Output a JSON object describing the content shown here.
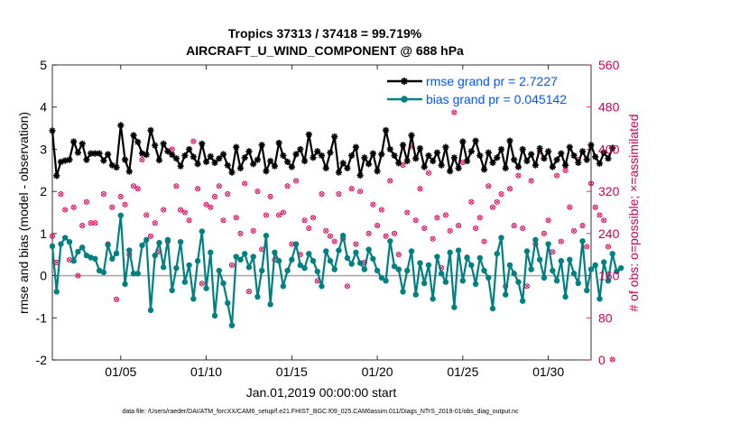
{
  "chart_data": {
    "type": "line",
    "title": "Tropics 37313 / 37418 = 99.719%",
    "subtitle": "AIRCRAFT_U_WIND_COMPONENT @ 688 hPa",
    "xlabel": "Jan.01,2019 00:00:00 start",
    "ylabel": "rmse and bias (model - observation)",
    "y2label": "# of obs: o=possible; ×=assimilated",
    "footnote": "data file: /Users/raeder/DAI/ATM_forcXX/CAM6_setup/f.e21.FHIST_BGC.f09_025.CAM6assim.011/Diags_NTrS_2019-01/obs_diag_output.nc",
    "x_range_days": [
      1,
      32.5
    ],
    "ylim": [
      -2,
      5
    ],
    "y2lim": [
      0,
      560
    ],
    "xticks": [
      {
        "day": 5,
        "label": "01/05"
      },
      {
        "day": 10,
        "label": "01/10"
      },
      {
        "day": 15,
        "label": "01/15"
      },
      {
        "day": 20,
        "label": "01/20"
      },
      {
        "day": 25,
        "label": "01/25"
      },
      {
        "day": 30,
        "label": "01/30"
      }
    ],
    "yticks": [
      "-2",
      "-1",
      "0",
      "1",
      "2",
      "3",
      "4",
      "5"
    ],
    "y2ticks": [
      "0",
      "80",
      "160",
      "240",
      "320",
      "400",
      "480",
      "560"
    ],
    "legend": [
      {
        "name": "rmse grand pr = 2.7227",
        "color": "#000000"
      },
      {
        "name": "bias grand pr = 0.045142",
        "color": "#008080"
      }
    ],
    "colors": {
      "rmse": "#000000",
      "bias": "#008080",
      "obs": "#e0005a",
      "axis2": "#cc0055",
      "legend_text": "#0055ff",
      "zero_line": "#aaaaaa"
    },
    "series": [
      {
        "name": "rmse",
        "t0_day": 1,
        "dt_day": 0.25,
        "values": [
          3.44,
          2.37,
          2.7,
          2.73,
          2.75,
          3.18,
          2.92,
          3.13,
          2.75,
          2.9,
          2.9,
          2.9,
          2.73,
          2.88,
          2.62,
          2.57,
          3.57,
          2.75,
          2.47,
          3.33,
          3.17,
          2.9,
          2.87,
          3.45,
          3.09,
          2.74,
          3.13,
          2.95,
          2.87,
          2.78,
          2.6,
          2.85,
          3.0,
          2.82,
          2.65,
          3.13,
          2.7,
          2.83,
          2.68,
          2.78,
          2.88,
          2.62,
          2.45,
          3.05,
          2.55,
          2.8,
          2.95,
          2.65,
          2.75,
          3.1,
          2.48,
          2.72,
          2.6,
          3.15,
          2.85,
          2.7,
          2.58,
          2.88,
          3.0,
          2.72,
          3.35,
          2.8,
          2.95,
          2.85,
          2.55,
          2.92,
          3.3,
          2.45,
          2.67,
          2.55,
          2.85,
          3.05,
          2.38,
          2.8,
          2.65,
          2.9,
          2.48,
          2.88,
          3.45,
          3.0,
          2.85,
          2.67,
          3.1,
          2.72,
          3.33,
          2.78,
          3.02,
          2.58,
          2.85,
          2.72,
          2.92,
          2.62,
          3.05,
          2.48,
          2.8,
          2.55,
          3.18,
          2.72,
          2.95,
          3.2,
          2.85,
          2.52,
          2.92,
          2.68,
          2.8,
          3.0,
          2.55,
          3.2,
          2.75,
          2.58,
          3.0,
          2.72,
          2.88,
          2.62,
          3.02,
          2.78,
          2.95,
          2.58,
          2.75,
          2.9,
          2.62,
          3.05,
          2.85,
          2.68,
          2.95,
          2.75,
          3.1,
          2.82,
          2.66,
          2.92,
          2.78,
          3.03
        ]
      },
      {
        "name": "bias",
        "t0_day": 1,
        "dt_day": 0.25,
        "values": [
          0.7,
          -0.38,
          0.75,
          0.9,
          0.8,
          0.35,
          0.57,
          0.67,
          0.48,
          0.43,
          0.4,
          0.12,
          0.08,
          0.73,
          0.4,
          0.53,
          1.43,
          -0.2,
          0.6,
          0.05,
          0.05,
          0.72,
          0.85,
          -0.82,
          0.48,
          0.78,
          0.2,
          0.85,
          -0.35,
          0.18,
          0.8,
          -0.15,
          0.25,
          -0.55,
          0.35,
          1.05,
          -0.3,
          0.55,
          -0.95,
          0.12,
          -0.18,
          -0.65,
          -1.18,
          0.45,
          0.38,
          0.52,
          0.2,
          0.45,
          -0.5,
          0.12,
          0.95,
          -0.68,
          0.55,
          0.35,
          -0.25,
          0.12,
          0.38,
          0.75,
          0.25,
          0.18,
          0.52,
          0.35,
          0.1,
          -0.25,
          0.58,
          0.35,
          0.15,
          0.6,
          0.95,
          0.42,
          0.28,
          0.55,
          0.3,
          0.15,
          0.62,
          0.4,
          0.12,
          -0.05,
          -0.12,
          0.82,
          0.22,
          0.15,
          -0.38,
          0.12,
          0.58,
          -0.45,
          0.3,
          -0.18,
          0.25,
          -0.55,
          0.45,
          0.05,
          -0.15,
          0.55,
          -0.75,
          0.6,
          -0.12,
          0.42,
          0.25,
          -0.2,
          0.42,
          0.12,
          -0.05,
          -0.78,
          0.52,
          0.9,
          -0.45,
          0.25,
          0.05,
          -0.15,
          -0.6,
          0.58,
          0.15,
          0.85,
          0.38,
          -0.05,
          0.75,
          0.12,
          -0.12,
          0.35,
          -0.5,
          0.38,
          0.05,
          -0.18,
          0.82,
          -0.35,
          0.15,
          0.25,
          -0.55,
          0.32,
          -0.12,
          0.52,
          0.1,
          0.18
        ]
      },
      {
        "name": "obs_possible",
        "t0_day": 1,
        "dt_day": 0.25,
        "values": [
          235,
          185,
          315,
          285,
          190,
          290,
          160,
          255,
          300,
          260,
          260,
          170,
          315,
          220,
          290,
          115,
          310,
          295,
          200,
          330,
          325,
          380,
          275,
          235,
          260,
          205,
          285,
          225,
          400,
          330,
          285,
          280,
          265,
          415,
          325,
          145,
          295,
          290,
          310,
          330,
          265,
          315,
          180,
          270,
          240,
          335,
          130,
          245,
          320,
          210,
          275,
          310,
          190,
          275,
          280,
          330,
          220,
          340,
          200,
          265,
          250,
          270,
          150,
          315,
          245,
          235,
          225,
          315,
          230,
          140,
          325,
          220,
          320,
          185,
          240,
          295,
          255,
          285,
          235,
          340,
          240,
          200,
          370,
          280,
          405,
          265,
          325,
          250,
          355,
          230,
          270,
          175,
          275,
          245,
          470,
          255,
          375,
          195,
          300,
          250,
          270,
          225,
          330,
          290,
          300,
          315,
          140,
          325,
          255,
          350,
          250,
          140,
          340,
          220,
          395,
          240,
          265,
          205,
          350,
          225,
          360,
          290,
          245,
          380,
          255,
          215,
          335,
          290,
          275,
          265,
          215,
          1
        ]
      }
    ]
  }
}
